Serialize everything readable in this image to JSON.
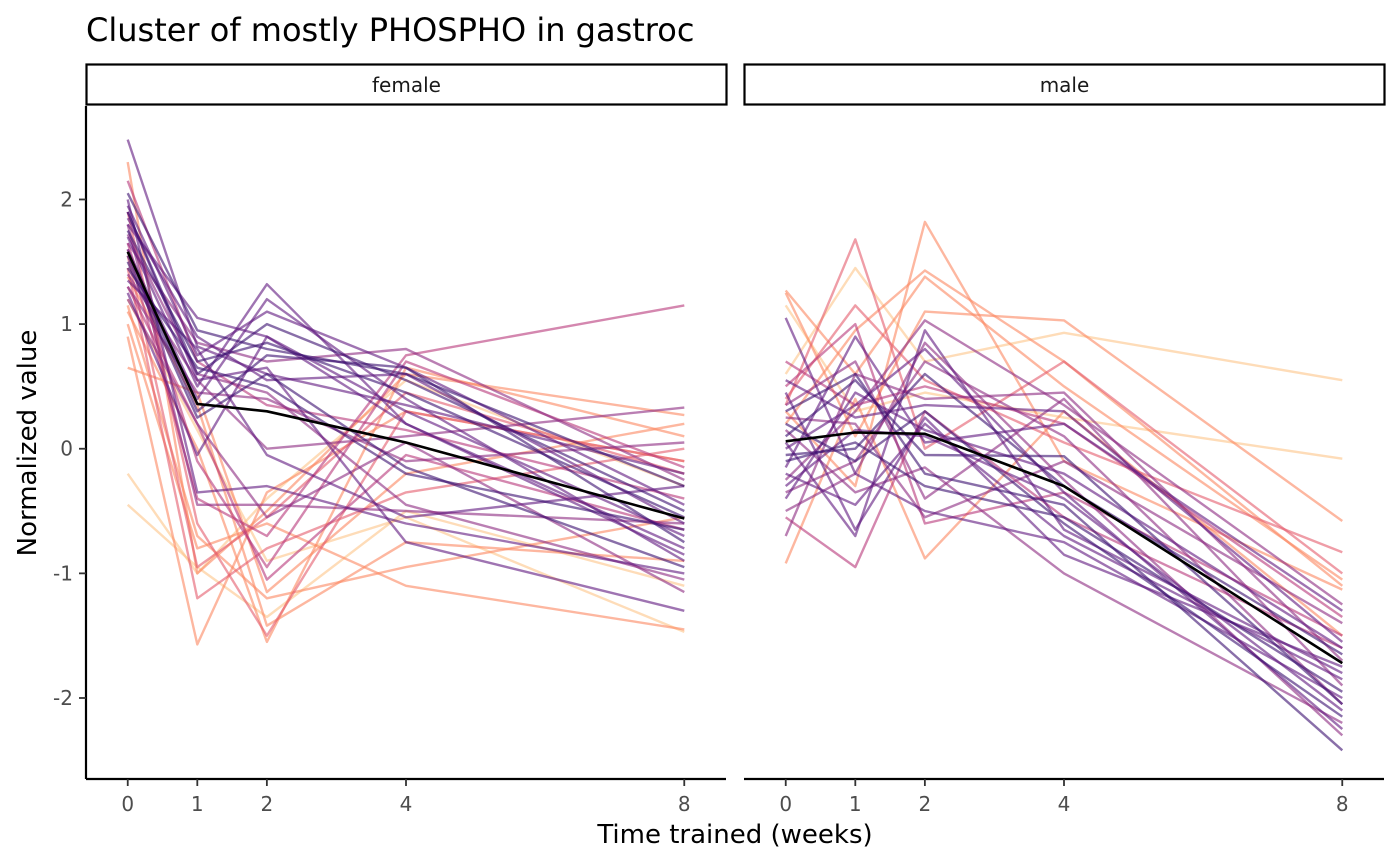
{
  "chart_data": {
    "type": "line",
    "title": "Cluster of mostly PHOSPHO in gastroc",
    "xlabel": "Time trained (weeks)",
    "ylabel": "Normalized value",
    "x": [
      0,
      1,
      2,
      4,
      8
    ],
    "x_tick_labels": [
      "0",
      "1",
      "2",
      "4",
      "8"
    ],
    "y_ticks": [
      2,
      1,
      0,
      -1,
      -2
    ],
    "y_tick_labels": [
      "2",
      "1",
      "0",
      "-1",
      "-2"
    ],
    "xlim": [
      -0.6,
      8.6
    ],
    "ylim": [
      -2.65,
      2.75
    ],
    "grid": false,
    "legend": "none",
    "palette": [
      "#fcfdbf",
      "#fec488",
      "#fb8761",
      "#e55c6c",
      "#b73779",
      "#8c2981",
      "#5f187f",
      "#3b0f70"
    ],
    "mean_color": "#000000",
    "panels": [
      {
        "strip_label": "female",
        "mean": [
          1.58,
          0.36,
          0.3,
          0.05,
          -0.56
        ],
        "series": [
          {
            "values": [
              2.48,
              0.82,
              0.6,
              0.35,
              -0.2
            ],
            "color_level": 0.88
          },
          {
            "values": [
              2.05,
              0.95,
              0.8,
              0.6,
              -0.3
            ],
            "color_level": 0.95
          },
          {
            "values": [
              1.95,
              0.75,
              1.1,
              0.65,
              -0.45
            ],
            "color_level": 0.92
          },
          {
            "values": [
              1.9,
              0.6,
              1.0,
              0.55,
              -0.5
            ],
            "color_level": 0.97
          },
          {
            "values": [
              1.85,
              0.9,
              0.55,
              0.6,
              -0.6
            ],
            "color_level": 0.9
          },
          {
            "values": [
              1.8,
              1.05,
              0.9,
              0.3,
              -0.7
            ],
            "color_level": 0.85
          },
          {
            "values": [
              1.75,
              0.7,
              0.85,
              0.45,
              -0.55
            ],
            "color_level": 0.98
          },
          {
            "values": [
              1.7,
              0.5,
              1.32,
              0.2,
              -0.8
            ],
            "color_level": 0.8
          },
          {
            "values": [
              1.65,
              0.85,
              0.7,
              0.8,
              -0.25
            ],
            "color_level": 0.75
          },
          {
            "values": [
              1.6,
              0.4,
              1.2,
              0.4,
              -0.9
            ],
            "color_level": 0.82
          },
          {
            "values": [
              1.55,
              0.3,
              0.75,
              0.65,
              -0.75
            ],
            "color_level": 0.96
          },
          {
            "values": [
              1.5,
              0.25,
              0.6,
              -0.15,
              -0.95
            ],
            "color_level": 0.93
          },
          {
            "values": [
              1.45,
              0.65,
              0.5,
              -0.2,
              -0.65
            ],
            "color_level": 0.99
          },
          {
            "values": [
              1.4,
              0.55,
              0.0,
              0.1,
              0.33
            ],
            "color_level": 0.78
          },
          {
            "values": [
              1.35,
              0.8,
              -0.05,
              -0.55,
              -0.3
            ],
            "color_level": 0.86
          },
          {
            "values": [
              1.3,
              0.45,
              0.4,
              -0.1,
              0.05
            ],
            "color_level": 0.7
          },
          {
            "values": [
              1.25,
              -0.05,
              0.9,
              0.2,
              -0.85
            ],
            "color_level": 0.88
          },
          {
            "values": [
              1.2,
              0.2,
              -0.55,
              0.05,
              -1.15
            ],
            "color_level": 0.76
          },
          {
            "values": [
              2.0,
              -0.35,
              -0.3,
              -0.6,
              -1.0
            ],
            "color_level": 0.84
          },
          {
            "values": [
              1.9,
              0.55,
              0.65,
              -0.75,
              -1.3
            ],
            "color_level": 0.79
          },
          {
            "values": [
              1.72,
              0.6,
              0.45,
              -0.45,
              -1.05
            ],
            "color_level": 0.72
          },
          {
            "values": [
              1.6,
              -0.4,
              -0.7,
              0.75,
              1.15
            ],
            "color_level": 0.62
          },
          {
            "values": [
              1.8,
              -0.45,
              -0.45,
              -0.5,
              -0.6
            ],
            "color_level": 0.66
          },
          {
            "values": [
              2.15,
              0.7,
              0.35,
              0.15,
              -0.4
            ],
            "color_level": 0.55
          },
          {
            "values": [
              1.65,
              -0.1,
              -0.95,
              0.7,
              -0.15
            ],
            "color_level": 0.5
          },
          {
            "values": [
              1.9,
              -0.6,
              -1.5,
              0.3,
              -0.1
            ],
            "color_level": 0.45
          },
          {
            "values": [
              1.45,
              -1.2,
              -0.8,
              -0.35,
              0.0
            ],
            "color_level": 0.48
          },
          {
            "values": [
              1.55,
              -0.95,
              -0.55,
              0.45,
              -0.2
            ],
            "color_level": 0.4
          },
          {
            "values": [
              2.3,
              -1.0,
              -0.5,
              0.6,
              0.27
            ],
            "color_level": 0.35
          },
          {
            "values": [
              1.3,
              0.2,
              -1.05,
              -0.05,
              -0.65
            ],
            "color_level": 0.58
          },
          {
            "values": [
              1.15,
              -0.7,
              -1.2,
              -0.95,
              -0.55
            ],
            "color_level": 0.32
          },
          {
            "values": [
              1.1,
              0.0,
              -1.55,
              0.65,
              0.1
            ],
            "color_level": 0.3
          },
          {
            "values": [
              0.9,
              -1.57,
              -0.35,
              0.3,
              -0.1
            ],
            "color_level": 0.27
          },
          {
            "values": [
              1.0,
              -0.8,
              -0.6,
              -1.1,
              -1.45
            ],
            "color_level": 0.25
          },
          {
            "values": [
              0.65,
              0.45,
              -1.15,
              -0.2,
              0.2
            ],
            "color_level": 0.33
          },
          {
            "values": [
              1.38,
              0.35,
              -1.42,
              -0.75,
              -0.9
            ],
            "color_level": 0.22
          },
          {
            "values": [
              -0.2,
              -1.0,
              -0.4,
              0.55,
              -0.3
            ],
            "color_level": 0.12
          },
          {
            "values": [
              -0.45,
              -0.95,
              -1.35,
              -0.5,
              -1.1
            ],
            "color_level": 0.08
          },
          {
            "values": [
              1.2,
              0.15,
              -0.9,
              -0.55,
              -1.47
            ],
            "color_level": 0.18
          }
        ]
      },
      {
        "strip_label": "male",
        "mean": [
          0.06,
          0.13,
          0.12,
          -0.3,
          -1.72
        ],
        "series": [
          {
            "values": [
              0.3,
              0.6,
              -0.2,
              -0.45,
              -2.42
            ],
            "color_level": 0.98
          },
          {
            "values": [
              0.2,
              -0.1,
              0.3,
              -0.6,
              -2.15
            ],
            "color_level": 0.96
          },
          {
            "values": [
              0.1,
              0.55,
              -0.05,
              -0.06,
              -2.05
            ],
            "color_level": 0.94
          },
          {
            "values": [
              0.0,
              0.35,
              0.8,
              -0.35,
              -2.25
            ],
            "color_level": 0.92
          },
          {
            "values": [
              -0.1,
              0.05,
              -0.3,
              -0.55,
              -1.95
            ],
            "color_level": 0.99
          },
          {
            "values": [
              -0.2,
              -0.45,
              0.2,
              -0.7,
              -1.85
            ],
            "color_level": 0.9
          },
          {
            "values": [
              -0.3,
              0.15,
              0.1,
              -0.4,
              -2.1
            ],
            "color_level": 0.86
          },
          {
            "values": [
              0.45,
              -0.65,
              0.25,
              -0.85,
              -1.75
            ],
            "color_level": 0.88
          },
          {
            "values": [
              -0.05,
              0.0,
              0.6,
              -0.3,
              -1.65
            ],
            "color_level": 0.95
          },
          {
            "values": [
              0.55,
              0.25,
              0.35,
              0.3,
              -1.55
            ],
            "color_level": 0.8
          },
          {
            "values": [
              1.05,
              -0.2,
              -0.5,
              -0.75,
              -2.0
            ],
            "color_level": 0.85
          },
          {
            "values": [
              -0.15,
              0.9,
              0.05,
              0.2,
              -1.3
            ],
            "color_level": 0.82
          },
          {
            "values": [
              0.15,
              -0.35,
              -0.15,
              -1.0,
              -2.2
            ],
            "color_level": 0.78
          },
          {
            "values": [
              -0.4,
              0.45,
              0.15,
              -0.2,
              -1.6
            ],
            "color_level": 0.91
          },
          {
            "values": [
              0.35,
              0.7,
              -0.4,
              0.4,
              -1.9
            ],
            "color_level": 0.75
          },
          {
            "values": [
              0.05,
              -0.7,
              0.95,
              -0.65,
              -1.8
            ],
            "color_level": 0.83
          },
          {
            "values": [
              -0.25,
              0.3,
              1.03,
              0.35,
              -1.25
            ],
            "color_level": 0.77
          },
          {
            "values": [
              -0.5,
              -0.2,
              0.85,
              -0.25,
              -2.3
            ],
            "color_level": 0.72
          },
          {
            "values": [
              -0.7,
              0.6,
              0.4,
              0.45,
              -1.7
            ],
            "color_level": 0.7
          },
          {
            "values": [
              0.25,
              0.2,
              -0.55,
              -0.1,
              -1.4
            ],
            "color_level": 0.66
          },
          {
            "values": [
              -0.35,
              -0.1,
              0.7,
              0.1,
              -2.05
            ],
            "color_level": 0.74
          },
          {
            "values": [
              0.5,
              1.0,
              -0.6,
              -0.35,
              -1.5
            ],
            "color_level": 0.62
          },
          {
            "values": [
              0.7,
              0.35,
              0.5,
              0.2,
              -1.35
            ],
            "color_level": 0.58
          },
          {
            "values": [
              -0.55,
              -0.95,
              0.3,
              -0.55,
              -1.6
            ],
            "color_level": 0.55
          },
          {
            "values": [
              0.4,
              1.15,
              0.55,
              0.05,
              -0.83
            ],
            "color_level": 0.45
          },
          {
            "values": [
              0.35,
              1.68,
              0.0,
              0.7,
              -1.0
            ],
            "color_level": 0.4
          },
          {
            "values": [
              0.2,
              0.95,
              1.43,
              0.7,
              -1.1
            ],
            "color_level": 0.35
          },
          {
            "values": [
              1.27,
              0.6,
              1.38,
              0.5,
              -1.05
            ],
            "color_level": 0.3
          },
          {
            "values": [
              0.3,
              -0.3,
              1.82,
              -0.1,
              -1.13
            ],
            "color_level": 0.27
          },
          {
            "values": [
              1.25,
              0.1,
              1.1,
              1.03,
              -0.58
            ],
            "color_level": 0.22
          },
          {
            "values": [
              -0.92,
              0.4,
              -0.88,
              0.3,
              -1.5
            ],
            "color_level": 0.25
          },
          {
            "values": [
              0.6,
              1.45,
              0.7,
              0.93,
              0.55
            ],
            "color_level": 0.1
          },
          {
            "values": [
              1.15,
              0.3,
              0.45,
              0.25,
              -0.08
            ],
            "color_level": 0.15
          }
        ]
      }
    ]
  }
}
